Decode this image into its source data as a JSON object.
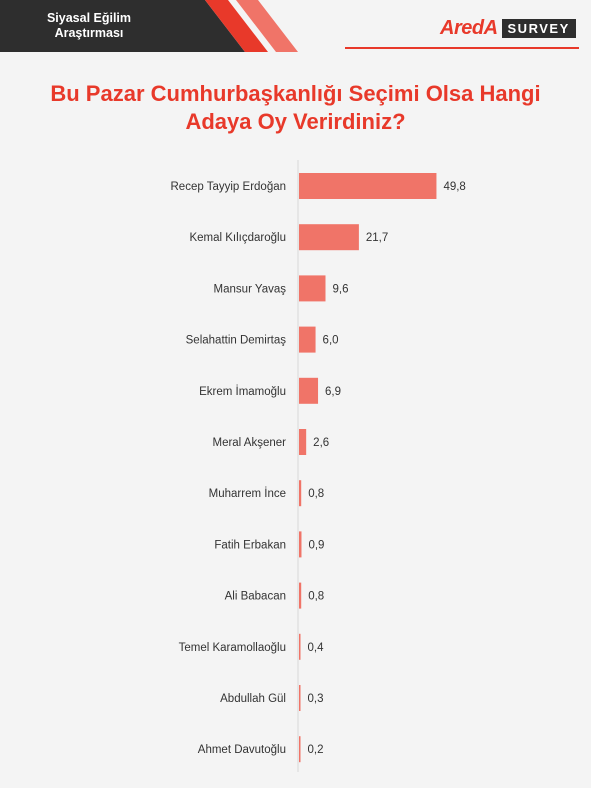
{
  "header": {
    "label_line1": "Siyasal Eğilim",
    "label_line2": "Araştırması",
    "logo_word": "AredA",
    "logo_survey": "SURVEY"
  },
  "colors": {
    "bar": "#f07468",
    "accent": "#e8392a",
    "dark": "#2e2e2e"
  },
  "chart_data": {
    "type": "bar",
    "orientation": "horizontal",
    "title_line1": "Bu Pazar Cumhurbaşkanlığı Seçimi Olsa Hangi",
    "title_line2": "Adaya Oy Verirdiniz?",
    "categories": [
      "Recep Tayyip Erdoğan",
      "Kemal Kılıçdaroğlu",
      "Mansur Yavaş",
      "Selahattin Demirtaş",
      "Ekrem İmamoğlu",
      "Meral Akşener",
      "Muharrem İnce",
      "Fatih Erbakan",
      "Ali Babacan",
      "Temel Karamollaoğlu",
      "Abdullah Gül",
      "Ahmet Davutoğlu"
    ],
    "values": [
      49.8,
      21.7,
      9.6,
      6.0,
      6.9,
      2.6,
      0.8,
      0.9,
      0.8,
      0.4,
      0.3,
      0.2
    ],
    "value_labels": [
      "49,8",
      "21,7",
      "9,6",
      "6,0",
      "6,9",
      "2,6",
      "0,8",
      "0,9",
      "0,8",
      "0,4",
      "0,3",
      "0,2"
    ],
    "xlim": [
      0,
      50
    ],
    "grid": false,
    "legend": "none"
  }
}
